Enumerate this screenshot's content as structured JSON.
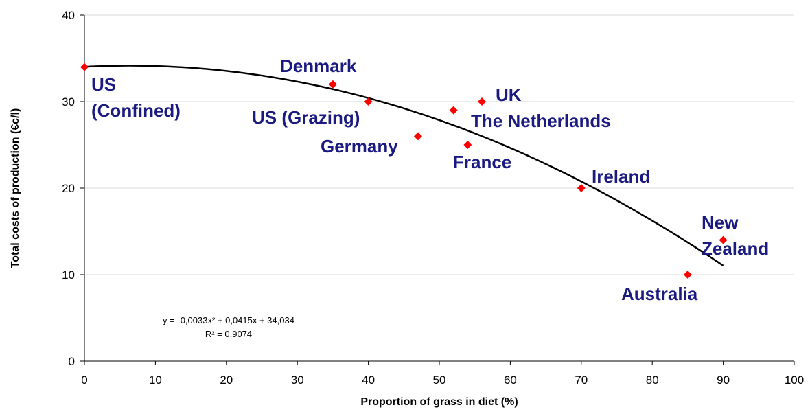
{
  "chart_data": {
    "type": "scatter",
    "x_label": "Proportion of grass in diet (%)",
    "y_label": "Total costs of production (€c/l)",
    "labels": [
      "US\n(Confined)",
      "Denmark",
      "US (Grazing)",
      "Germany",
      "The Netherlands",
      "UK",
      "France",
      "Ireland",
      "Australia",
      "New\nZealand"
    ],
    "x": [
      0,
      35,
      40,
      47,
      52,
      56,
      54,
      70,
      85,
      90
    ],
    "values": [
      34,
      32,
      30,
      26,
      29,
      30,
      25,
      20,
      10,
      14
    ],
    "color": "#ff0000",
    "label_color": "#1a1a80",
    "xlim": [
      0,
      100
    ],
    "xticks": [
      0,
      10,
      20,
      30,
      40,
      50,
      60,
      70,
      80,
      90,
      100
    ],
    "ylim": [
      0,
      40
    ],
    "yticks": [
      0,
      10,
      20,
      30,
      40
    ],
    "grid": true,
    "trendline": {
      "type": "polynomial",
      "coefficients": [
        -0.0033,
        0.0415,
        34.034
      ],
      "color": "#000000",
      "equation": "y = -0,0033x² + 0,0415x + 34,034",
      "r2": "R² = 0,9074"
    }
  }
}
